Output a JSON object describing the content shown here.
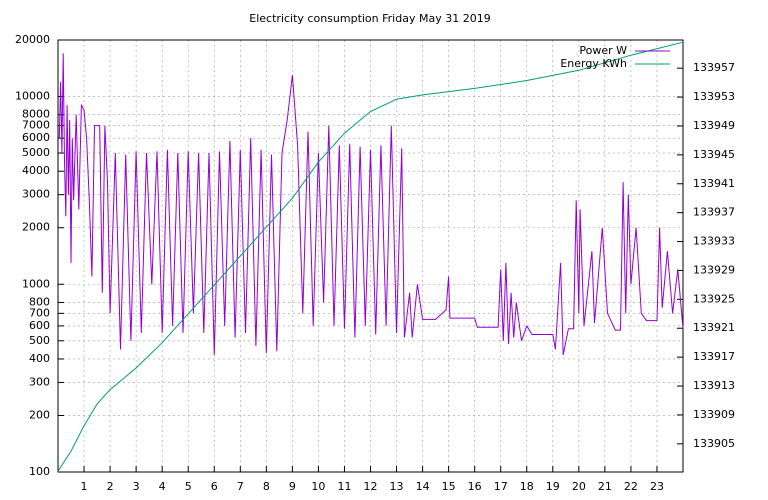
{
  "chart_data": {
    "type": "line",
    "title": "Electricity consumption Friday May 31 2019",
    "xlim": [
      0,
      24
    ],
    "xticks": [
      1,
      2,
      3,
      4,
      5,
      6,
      7,
      8,
      9,
      10,
      11,
      12,
      13,
      14,
      15,
      16,
      17,
      18,
      19,
      20,
      21,
      22,
      23
    ],
    "ylim": [
      100,
      20000
    ],
    "log_y": true,
    "yticks": [
      100,
      200,
      300,
      400,
      500,
      600,
      700,
      800,
      1000,
      2000,
      3000,
      4000,
      5000,
      6000,
      7000,
      8000,
      10000,
      20000
    ],
    "y2lim": [
      133901.1,
      133960.9
    ],
    "y2ticks": [
      133905,
      133909,
      133913,
      133917,
      133921,
      133925,
      133929,
      133933,
      133937,
      133941,
      133945,
      133949,
      133953,
      133957
    ],
    "grid": true,
    "legend": "top-right",
    "series": [
      {
        "name": "Power W",
        "color": "#9400d3",
        "axis": "y",
        "x": [
          0.05,
          0.1,
          0.15,
          0.2,
          0.25,
          0.3,
          0.35,
          0.4,
          0.45,
          0.5,
          0.55,
          0.6,
          0.7,
          0.8,
          0.9,
          1.0,
          1.1,
          1.2,
          1.3,
          1.4,
          1.6,
          1.7,
          1.8,
          1.9,
          2.0,
          2.2,
          2.4,
          2.6,
          2.8,
          3.0,
          3.2,
          3.4,
          3.6,
          3.8,
          4.0,
          4.2,
          4.4,
          4.6,
          4.8,
          5.0,
          5.2,
          5.4,
          5.6,
          5.8,
          6.0,
          6.2,
          6.4,
          6.6,
          6.8,
          7.0,
          7.2,
          7.4,
          7.6,
          7.8,
          8.0,
          8.2,
          8.4,
          8.6,
          8.8,
          9.0,
          9.2,
          9.4,
          9.6,
          9.8,
          10.0,
          10.2,
          10.4,
          10.6,
          10.8,
          11.0,
          11.2,
          11.4,
          11.6,
          11.8,
          12.0,
          12.2,
          12.4,
          12.6,
          12.8,
          13.0,
          13.2,
          13.3,
          13.5,
          13.6,
          13.8,
          14.0,
          14.5,
          14.9,
          15.0,
          15.05,
          16.0,
          16.1,
          16.9,
          17.0,
          17.1,
          17.2,
          17.3,
          17.4,
          17.5,
          17.6,
          17.8,
          18.0,
          18.2,
          19.0,
          19.1,
          19.3,
          19.4,
          19.6,
          19.8,
          19.9,
          20.0,
          20.05,
          20.2,
          20.5,
          20.6,
          20.9,
          21.1,
          21.4,
          21.6,
          21.7,
          21.8,
          21.9,
          22.0,
          22.2,
          22.4,
          22.6,
          23.0,
          23.1,
          23.2,
          23.4,
          23.6,
          23.8,
          24.0
        ],
        "values": [
          6000,
          12000,
          5000,
          17000,
          4500,
          2300,
          9000,
          3000,
          7500,
          1300,
          6000,
          2800,
          8000,
          2500,
          9000,
          8500,
          6000,
          2800,
          1100,
          7000,
          7000,
          900,
          7000,
          3500,
          700,
          5000,
          450,
          4900,
          500,
          5100,
          550,
          5000,
          1000,
          5100,
          550,
          5200,
          600,
          5000,
          550,
          5100,
          700,
          5000,
          550,
          5000,
          420,
          5100,
          600,
          5800,
          520,
          5200,
          550,
          6000,
          470,
          5200,
          430,
          4900,
          440,
          5000,
          7500,
          13000,
          5500,
          700,
          6500,
          600,
          5000,
          800,
          7000,
          600,
          5500,
          580,
          5600,
          520,
          5400,
          600,
          5200,
          540,
          5500,
          600,
          7000,
          550,
          5300,
          520,
          900,
          520,
          1000,
          650,
          650,
          730,
          1100,
          660,
          660,
          590,
          590,
          1200,
          500,
          1300,
          480,
          900,
          520,
          800,
          500,
          600,
          540,
          540,
          450,
          1300,
          420,
          580,
          580,
          2800,
          700,
          2500,
          600,
          1500,
          620,
          2000,
          700,
          570,
          570,
          3500,
          700,
          3000,
          1000,
          2000,
          700,
          640,
          640,
          2000,
          750,
          1500,
          700,
          1200,
          580
        ]
      },
      {
        "name": "Energy KWh",
        "color": "#009e73",
        "axis": "y2",
        "x": [
          0,
          0.5,
          1,
          1.5,
          2,
          3,
          4,
          5,
          6,
          7,
          8,
          9,
          10,
          11,
          12,
          13,
          14,
          16,
          18,
          20,
          22,
          24
        ],
        "values": [
          133901.2,
          133904,
          133907.5,
          133910.5,
          133912.5,
          133915.5,
          133919,
          133923,
          133927,
          133931,
          133935,
          133939,
          133944,
          133948,
          133951,
          133952.7,
          133953.3,
          133954.2,
          133955.3,
          133956.7,
          133958.8,
          133960.6
        ]
      }
    ]
  }
}
